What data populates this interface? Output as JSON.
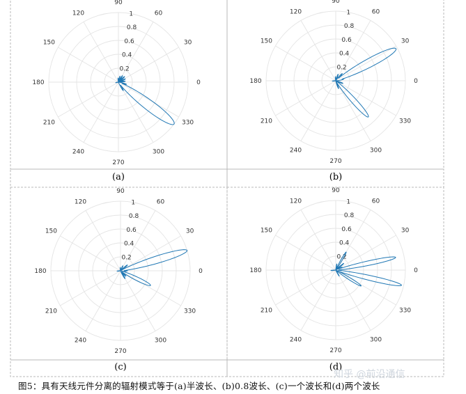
{
  "chart_data": [
    {
      "type": "polar",
      "panel_label": "(a)",
      "angle_ticks": [
        "0",
        "30",
        "60",
        "90",
        "120",
        "150",
        "180",
        "210",
        "240",
        "270",
        "300",
        "330"
      ],
      "radial_ticks": [
        "0.2",
        "0.4",
        "0.6",
        "0.8",
        "1"
      ],
      "rlim": [
        0,
        1
      ],
      "grid": true,
      "series": [
        {
          "color": "#1f77b4",
          "lobes": [
            {
              "angle": 323,
              "value": 1.0,
              "width": 7
            },
            {
              "angle": 8,
              "value": 0.1,
              "width": 4
            },
            {
              "angle": 25,
              "value": 0.11,
              "width": 4
            },
            {
              "angle": 42,
              "value": 0.12,
              "width": 4
            },
            {
              "angle": 58,
              "value": 0.11,
              "width": 4
            },
            {
              "angle": 75,
              "value": 0.09,
              "width": 4
            },
            {
              "angle": 95,
              "value": 0.06,
              "width": 4
            },
            {
              "angle": 190,
              "value": 0.04,
              "width": 5
            },
            {
              "angle": 300,
              "value": 0.14,
              "width": 4
            },
            {
              "angle": 345,
              "value": 0.12,
              "width": 4
            }
          ]
        }
      ]
    },
    {
      "type": "polar",
      "panel_label": "(b)",
      "angle_ticks": [
        "0",
        "30",
        "60",
        "90",
        "120",
        "150",
        "180",
        "210",
        "240",
        "270",
        "300",
        "330"
      ],
      "radial_ticks": [
        "0.2",
        "0.4",
        "0.6",
        "0.8",
        "1"
      ],
      "rlim": [
        0,
        1
      ],
      "grid": true,
      "series": [
        {
          "color": "#1f77b4",
          "lobes": [
            {
              "angle": 28,
              "value": 0.98,
              "width": 6
            },
            {
              "angle": 312,
              "value": 0.7,
              "width": 5
            },
            {
              "angle": 12,
              "value": 0.12,
              "width": 4
            },
            {
              "angle": 48,
              "value": 0.14,
              "width": 4
            },
            {
              "angle": 70,
              "value": 0.1,
              "width": 4
            },
            {
              "angle": 95,
              "value": 0.06,
              "width": 4
            },
            {
              "angle": 185,
              "value": 0.05,
              "width": 5
            },
            {
              "angle": 290,
              "value": 0.12,
              "width": 4
            },
            {
              "angle": 340,
              "value": 0.11,
              "width": 4
            }
          ]
        }
      ]
    },
    {
      "type": "polar",
      "panel_label": "(c)",
      "angle_ticks": [
        "0",
        "30",
        "60",
        "90",
        "120",
        "150",
        "180",
        "210",
        "240",
        "270",
        "300",
        "330"
      ],
      "radial_ticks": [
        "0.2",
        "0.4",
        "0.6",
        "0.8",
        "1"
      ],
      "rlim": [
        0,
        1
      ],
      "grid": true,
      "series": [
        {
          "color": "#1f77b4",
          "lobes": [
            {
              "angle": 17,
              "value": 1.0,
              "width": 5
            },
            {
              "angle": 334,
              "value": 0.48,
              "width": 5
            },
            {
              "angle": 40,
              "value": 0.13,
              "width": 4
            },
            {
              "angle": 0,
              "value": 0.1,
              "width": 4
            },
            {
              "angle": 355,
              "value": 0.08,
              "width": 4
            },
            {
              "angle": 65,
              "value": 0.08,
              "width": 4
            },
            {
              "angle": 95,
              "value": 0.05,
              "width": 4
            },
            {
              "angle": 185,
              "value": 0.05,
              "width": 5
            },
            {
              "angle": 300,
              "value": 0.13,
              "width": 4
            },
            {
              "angle": 315,
              "value": 0.11,
              "width": 4
            }
          ]
        }
      ]
    },
    {
      "type": "polar",
      "panel_label": "(d)",
      "angle_ticks": [
        "0",
        "30",
        "60",
        "90",
        "120",
        "150",
        "180",
        "210",
        "240",
        "270",
        "300",
        "330"
      ],
      "radial_ticks": [
        "0.2",
        "0.4",
        "0.6",
        "0.8",
        "1"
      ],
      "rlim": [
        0,
        1
      ],
      "grid": true,
      "series": [
        {
          "color": "#1f77b4",
          "lobes": [
            {
              "angle": 12,
              "value": 0.88,
              "width": 3.5
            },
            {
              "angle": 347,
              "value": 0.97,
              "width": 3.5
            },
            {
              "angle": 328,
              "value": 0.43,
              "width": 3.5
            },
            {
              "angle": 60,
              "value": 0.3,
              "width": 3
            },
            {
              "angle": 40,
              "value": 0.15,
              "width": 3
            },
            {
              "angle": 25,
              "value": 0.1,
              "width": 3
            },
            {
              "angle": 0,
              "value": 0.08,
              "width": 3
            },
            {
              "angle": 80,
              "value": 0.09,
              "width": 3
            },
            {
              "angle": 185,
              "value": 0.07,
              "width": 4
            },
            {
              "angle": 300,
              "value": 0.1,
              "width": 3
            }
          ]
        }
      ]
    }
  ],
  "caption": "图5：具有天线元件分离的辐射模式等于(a)半波长、(b)0.8波长、(c)一个波长和(d)两个波长",
  "watermark": "知乎 @前沿通信"
}
